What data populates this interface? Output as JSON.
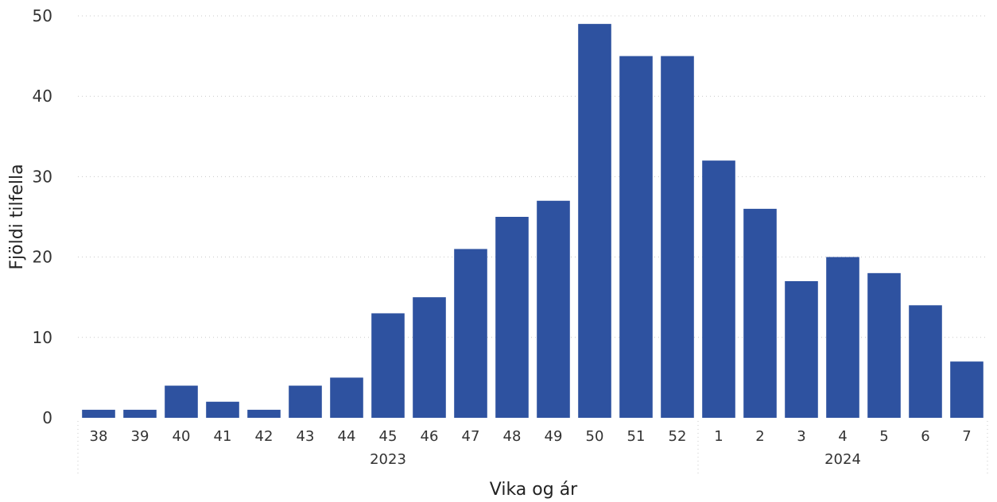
{
  "chart_data": {
    "type": "bar",
    "ylabel": "Fjöldi tilfella",
    "xlabel": "Vika og ár",
    "ylim": [
      0,
      50
    ],
    "yticks": [
      0,
      10,
      20,
      30,
      40,
      50
    ],
    "grid": true,
    "bar_color": "#2E52A0",
    "categories": [
      "38",
      "39",
      "40",
      "41",
      "42",
      "43",
      "44",
      "45",
      "46",
      "47",
      "48",
      "49",
      "50",
      "51",
      "52",
      "1",
      "2",
      "3",
      "4",
      "5",
      "6",
      "7"
    ],
    "values": [
      1,
      1,
      4,
      2,
      1,
      4,
      5,
      13,
      15,
      21,
      25,
      27,
      49,
      45,
      45,
      32,
      26,
      17,
      20,
      18,
      14,
      7
    ],
    "groups": [
      {
        "label": "2023",
        "start": 0,
        "end": 14
      },
      {
        "label": "2024",
        "start": 15,
        "end": 21
      }
    ]
  }
}
